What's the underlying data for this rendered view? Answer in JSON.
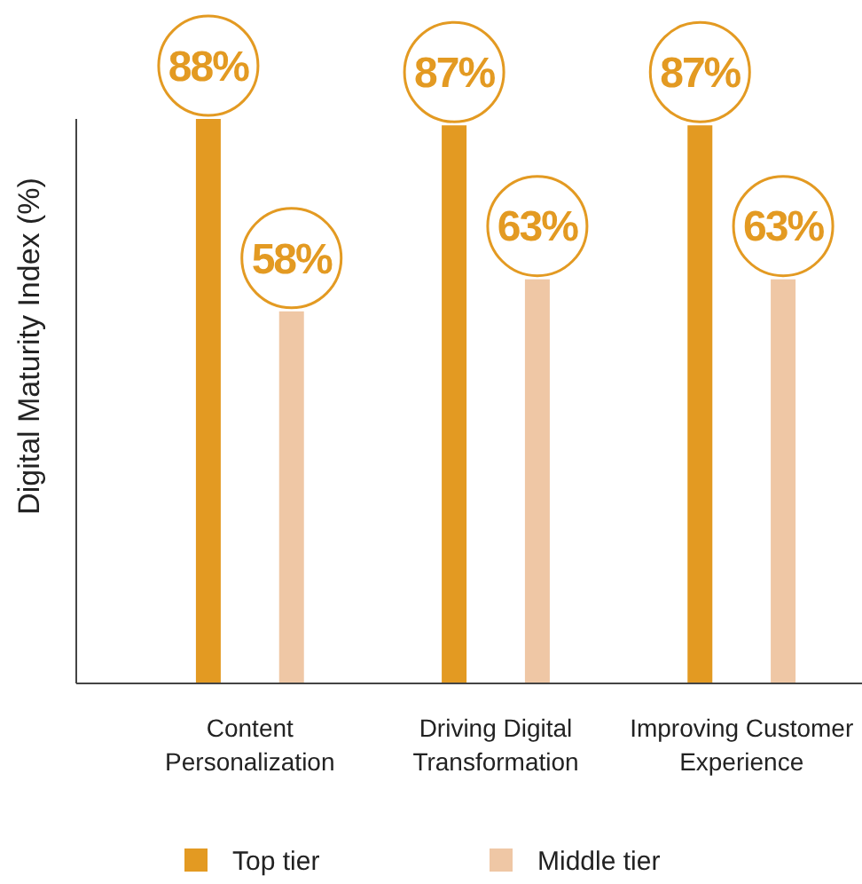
{
  "chart_data": {
    "type": "bar",
    "ylabel": "Digital Maturity Index (%)",
    "categories": [
      "Content Personalization",
      "Driving Digital Transformation",
      "Improving Customer Experience"
    ],
    "legend": "bottom",
    "grid": false,
    "series": [
      {
        "name": "Top tier",
        "color": "#e39a22",
        "values": [
          88,
          87,
          87
        ],
        "value_labels": [
          "88%",
          "87%",
          "87%"
        ]
      },
      {
        "name": "Middle tier",
        "color": "#efc7a5",
        "values": [
          58,
          63,
          63
        ],
        "value_labels": [
          "58%",
          "63%",
          "63%"
        ]
      }
    ]
  }
}
